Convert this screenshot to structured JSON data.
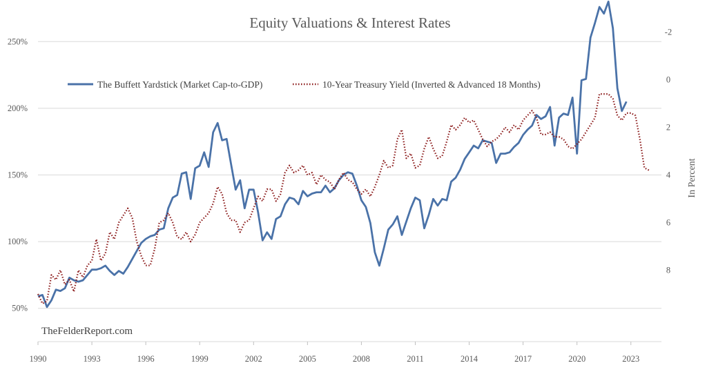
{
  "chart_data": {
    "type": "line",
    "title": "Equity Valuations & Interest Rates",
    "xlabel": "",
    "ylabel_left": "",
    "ylabel_right": "In Percent",
    "watermark": "TheFelderReport.com",
    "xlim": [
      1990,
      2024.7
    ],
    "x_ticks": [
      "1990",
      "1993",
      "1996",
      "1999",
      "2002",
      "2005",
      "2008",
      "2011",
      "2014",
      "2017",
      "2020",
      "2023"
    ],
    "ylim_left": [
      25,
      275
    ],
    "y_ticks_left": [
      "50%",
      "100%",
      "150%",
      "200%",
      "250%"
    ],
    "ylim_right_inverted": [
      -3,
      11
    ],
    "y_ticks_right": [
      "-2",
      "0",
      "2",
      "4",
      "6",
      "8"
    ],
    "legend_position": "top",
    "grid": true,
    "series": [
      {
        "name": "The Buffett Yardstick (Market Cap-to-GDP)",
        "axis": "left",
        "color": "#4a72a8",
        "style": "solid",
        "points": [
          [
            1990.0,
            59
          ],
          [
            1990.25,
            60
          ],
          [
            1990.5,
            51
          ],
          [
            1990.75,
            56
          ],
          [
            1991.0,
            64
          ],
          [
            1991.25,
            63
          ],
          [
            1991.5,
            65
          ],
          [
            1991.75,
            73
          ],
          [
            1992.0,
            71
          ],
          [
            1992.25,
            70
          ],
          [
            1992.5,
            71
          ],
          [
            1992.75,
            75
          ],
          [
            1993.0,
            79
          ],
          [
            1993.25,
            79
          ],
          [
            1993.5,
            80
          ],
          [
            1993.75,
            82
          ],
          [
            1994.0,
            78
          ],
          [
            1994.25,
            75
          ],
          [
            1994.5,
            78
          ],
          [
            1994.75,
            76
          ],
          [
            1995.0,
            81
          ],
          [
            1995.25,
            87
          ],
          [
            1995.5,
            93
          ],
          [
            1995.75,
            99
          ],
          [
            1996.0,
            102
          ],
          [
            1996.25,
            104
          ],
          [
            1996.5,
            105
          ],
          [
            1996.75,
            109
          ],
          [
            1997.0,
            110
          ],
          [
            1997.25,
            125
          ],
          [
            1997.5,
            133
          ],
          [
            1997.75,
            135
          ],
          [
            1998.0,
            151
          ],
          [
            1998.25,
            152
          ],
          [
            1998.5,
            132
          ],
          [
            1998.75,
            155
          ],
          [
            1999.0,
            157
          ],
          [
            1999.25,
            167
          ],
          [
            1999.5,
            156
          ],
          [
            1999.75,
            182
          ],
          [
            2000.0,
            189
          ],
          [
            2000.25,
            176
          ],
          [
            2000.5,
            177
          ],
          [
            2000.75,
            158
          ],
          [
            2001.0,
            139
          ],
          [
            2001.25,
            146
          ],
          [
            2001.5,
            125
          ],
          [
            2001.75,
            139
          ],
          [
            2002.0,
            139
          ],
          [
            2002.25,
            122
          ],
          [
            2002.5,
            101
          ],
          [
            2002.75,
            107
          ],
          [
            2003.0,
            102
          ],
          [
            2003.25,
            117
          ],
          [
            2003.5,
            119
          ],
          [
            2003.75,
            128
          ],
          [
            2004.0,
            133
          ],
          [
            2004.25,
            132
          ],
          [
            2004.5,
            128
          ],
          [
            2004.75,
            138
          ],
          [
            2005.0,
            134
          ],
          [
            2005.25,
            136
          ],
          [
            2005.5,
            137
          ],
          [
            2005.75,
            137
          ],
          [
            2006.0,
            142
          ],
          [
            2006.25,
            137
          ],
          [
            2006.5,
            140
          ],
          [
            2006.75,
            146
          ],
          [
            2007.0,
            150
          ],
          [
            2007.25,
            152
          ],
          [
            2007.5,
            151
          ],
          [
            2007.75,
            142
          ],
          [
            2008.0,
            131
          ],
          [
            2008.25,
            126
          ],
          [
            2008.5,
            114
          ],
          [
            2008.75,
            92
          ],
          [
            2009.0,
            82
          ],
          [
            2009.25,
            95
          ],
          [
            2009.5,
            109
          ],
          [
            2009.75,
            113
          ],
          [
            2010.0,
            119
          ],
          [
            2010.25,
            105
          ],
          [
            2010.5,
            115
          ],
          [
            2010.75,
            125
          ],
          [
            2011.0,
            133
          ],
          [
            2011.25,
            131
          ],
          [
            2011.5,
            110
          ],
          [
            2011.75,
            120
          ],
          [
            2012.0,
            132
          ],
          [
            2012.25,
            127
          ],
          [
            2012.5,
            132
          ],
          [
            2012.75,
            131
          ],
          [
            2013.0,
            145
          ],
          [
            2013.25,
            148
          ],
          [
            2013.5,
            154
          ],
          [
            2013.75,
            162
          ],
          [
            2014.0,
            167
          ],
          [
            2014.25,
            172
          ],
          [
            2014.5,
            170
          ],
          [
            2014.75,
            176
          ],
          [
            2015.0,
            175
          ],
          [
            2015.25,
            174
          ],
          [
            2015.5,
            159
          ],
          [
            2015.75,
            166
          ],
          [
            2016.0,
            166
          ],
          [
            2016.25,
            167
          ],
          [
            2016.5,
            171
          ],
          [
            2016.75,
            174
          ],
          [
            2017.0,
            180
          ],
          [
            2017.25,
            184
          ],
          [
            2017.5,
            187
          ],
          [
            2017.75,
            195
          ],
          [
            2018.0,
            192
          ],
          [
            2018.25,
            194
          ],
          [
            2018.5,
            201
          ],
          [
            2018.75,
            172
          ],
          [
            2019.0,
            193
          ],
          [
            2019.25,
            196
          ],
          [
            2019.5,
            195
          ],
          [
            2019.75,
            208
          ],
          [
            2020.0,
            166
          ],
          [
            2020.25,
            221
          ],
          [
            2020.5,
            222
          ],
          [
            2020.75,
            253
          ],
          [
            2021.0,
            264
          ],
          [
            2021.25,
            276
          ],
          [
            2021.5,
            271
          ],
          [
            2021.75,
            280
          ],
          [
            2022.0,
            260
          ],
          [
            2022.25,
            215
          ],
          [
            2022.5,
            198
          ],
          [
            2022.75,
            205
          ]
        ]
      },
      {
        "name": "10-Year Treasury Yield (Inverted & Advanced 18 Months)",
        "axis": "right",
        "color": "#8b1a1a",
        "style": "dotted",
        "points": [
          [
            1990.0,
            9.0
          ],
          [
            1990.25,
            9.4
          ],
          [
            1990.5,
            9.3
          ],
          [
            1990.75,
            8.2
          ],
          [
            1991.0,
            8.4
          ],
          [
            1991.25,
            8.0
          ],
          [
            1991.5,
            8.6
          ],
          [
            1991.75,
            8.4
          ],
          [
            1992.0,
            8.9
          ],
          [
            1992.25,
            8.0
          ],
          [
            1992.5,
            8.3
          ],
          [
            1992.75,
            7.8
          ],
          [
            1993.0,
            7.6
          ],
          [
            1993.25,
            6.7
          ],
          [
            1993.5,
            7.6
          ],
          [
            1993.75,
            7.3
          ],
          [
            1994.0,
            6.4
          ],
          [
            1994.25,
            6.7
          ],
          [
            1994.5,
            6.0
          ],
          [
            1994.75,
            5.7
          ],
          [
            1995.0,
            5.4
          ],
          [
            1995.25,
            5.8
          ],
          [
            1995.5,
            6.8
          ],
          [
            1995.75,
            7.4
          ],
          [
            1996.0,
            7.8
          ],
          [
            1996.25,
            7.8
          ],
          [
            1996.5,
            7.1
          ],
          [
            1996.75,
            6.0
          ],
          [
            1997.0,
            5.9
          ],
          [
            1997.25,
            5.6
          ],
          [
            1997.5,
            6.0
          ],
          [
            1997.75,
            6.6
          ],
          [
            1998.0,
            6.7
          ],
          [
            1998.25,
            6.4
          ],
          [
            1998.5,
            6.8
          ],
          [
            1998.75,
            6.5
          ],
          [
            1999.0,
            6.0
          ],
          [
            1999.25,
            5.8
          ],
          [
            1999.5,
            5.6
          ],
          [
            1999.75,
            5.2
          ],
          [
            2000.0,
            4.5
          ],
          [
            2000.25,
            4.8
          ],
          [
            2000.5,
            5.6
          ],
          [
            2000.75,
            5.9
          ],
          [
            2001.0,
            5.9
          ],
          [
            2001.25,
            6.4
          ],
          [
            2001.5,
            6.0
          ],
          [
            2001.75,
            5.9
          ],
          [
            2002.0,
            5.4
          ],
          [
            2002.25,
            4.9
          ],
          [
            2002.5,
            5.1
          ],
          [
            2002.75,
            4.6
          ],
          [
            2003.0,
            4.6
          ],
          [
            2003.25,
            5.1
          ],
          [
            2003.5,
            4.8
          ],
          [
            2003.75,
            3.9
          ],
          [
            2004.0,
            3.6
          ],
          [
            2004.25,
            3.9
          ],
          [
            2004.5,
            3.8
          ],
          [
            2004.75,
            3.6
          ],
          [
            2005.0,
            4.0
          ],
          [
            2005.25,
            3.9
          ],
          [
            2005.5,
            4.4
          ],
          [
            2005.75,
            4.0
          ],
          [
            2006.0,
            4.2
          ],
          [
            2006.25,
            4.3
          ],
          [
            2006.5,
            4.6
          ],
          [
            2006.75,
            4.2
          ],
          [
            2007.0,
            3.9
          ],
          [
            2007.25,
            4.2
          ],
          [
            2007.5,
            4.3
          ],
          [
            2007.75,
            4.6
          ],
          [
            2008.0,
            4.8
          ],
          [
            2008.25,
            4.6
          ],
          [
            2008.5,
            4.9
          ],
          [
            2008.75,
            4.5
          ],
          [
            2009.0,
            4.0
          ],
          [
            2009.25,
            3.4
          ],
          [
            2009.5,
            3.7
          ],
          [
            2009.75,
            3.6
          ],
          [
            2010.0,
            2.5
          ],
          [
            2010.25,
            2.1
          ],
          [
            2010.5,
            3.3
          ],
          [
            2010.75,
            3.1
          ],
          [
            2011.0,
            3.7
          ],
          [
            2011.25,
            3.6
          ],
          [
            2011.5,
            2.9
          ],
          [
            2011.75,
            2.4
          ],
          [
            2012.0,
            2.9
          ],
          [
            2012.25,
            3.3
          ],
          [
            2012.5,
            3.2
          ],
          [
            2012.75,
            2.6
          ],
          [
            2013.0,
            1.9
          ],
          [
            2013.25,
            2.1
          ],
          [
            2013.5,
            1.9
          ],
          [
            2013.75,
            1.6
          ],
          [
            2014.0,
            1.8
          ],
          [
            2014.25,
            1.7
          ],
          [
            2014.5,
            2.1
          ],
          [
            2014.75,
            2.5
          ],
          [
            2015.0,
            2.8
          ],
          [
            2015.25,
            2.6
          ],
          [
            2015.5,
            2.5
          ],
          [
            2015.75,
            2.3
          ],
          [
            2016.0,
            2.0
          ],
          [
            2016.25,
            2.2
          ],
          [
            2016.5,
            1.9
          ],
          [
            2016.75,
            2.1
          ],
          [
            2017.0,
            1.7
          ],
          [
            2017.25,
            1.5
          ],
          [
            2017.5,
            1.3
          ],
          [
            2017.75,
            1.6
          ],
          [
            2018.0,
            2.3
          ],
          [
            2018.25,
            2.3
          ],
          [
            2018.5,
            2.2
          ],
          [
            2018.75,
            2.4
          ],
          [
            2019.0,
            2.4
          ],
          [
            2019.25,
            2.5
          ],
          [
            2019.5,
            2.8
          ],
          [
            2019.75,
            2.9
          ],
          [
            2020.0,
            2.7
          ],
          [
            2020.25,
            2.5
          ],
          [
            2020.5,
            2.2
          ],
          [
            2020.75,
            1.9
          ],
          [
            2021.0,
            1.6
          ],
          [
            2021.25,
            0.6
          ],
          [
            2021.5,
            0.6
          ],
          [
            2021.75,
            0.6
          ],
          [
            2022.0,
            0.8
          ],
          [
            2022.25,
            1.5
          ],
          [
            2022.5,
            1.7
          ],
          [
            2022.75,
            1.4
          ],
          [
            2023.0,
            1.4
          ],
          [
            2023.25,
            1.5
          ],
          [
            2023.5,
            2.5
          ],
          [
            2023.75,
            3.7
          ],
          [
            2024.0,
            3.8
          ]
        ]
      }
    ]
  }
}
